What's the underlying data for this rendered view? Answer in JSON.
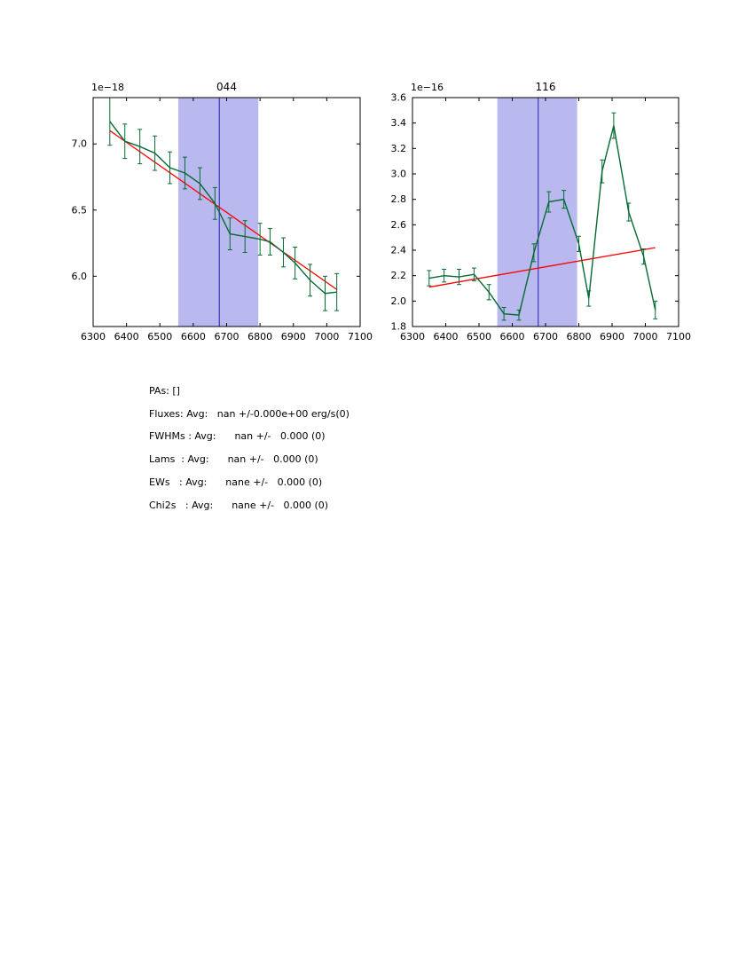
{
  "figure": {
    "background": "#ffffff"
  },
  "stats": {
    "lines": [
      "PAs: []",
      "Fluxes: Avg:   nan +/-0.000e+00 erg/s(0)",
      "FWHMs : Avg:      nan +/-   0.000 (0)",
      "Lams  : Avg:      nan +/-   0.000 (0)",
      "EWs   : Avg:      nane +/-   0.000 (0)",
      "Chi2s   : Avg:      nane +/-   0.000 (0)"
    ]
  },
  "chart_data": [
    {
      "type": "line",
      "title": "044",
      "offset_label": "1e−18",
      "xlabel": "",
      "ylabel": "",
      "legend": "none",
      "grid": false,
      "xlim": [
        6300,
        7100
      ],
      "ylim": [
        5.62,
        7.35
      ],
      "xticks": [
        6300,
        6400,
        6500,
        6600,
        6700,
        6800,
        6900,
        7000,
        7100
      ],
      "yticks": [
        6.0,
        6.5,
        7.0
      ],
      "span": [
        6555,
        6795
      ],
      "vline": 6678,
      "x": [
        6350,
        6395,
        6440,
        6485,
        6530,
        6575,
        6620,
        6665,
        6710,
        6755,
        6800,
        6830,
        6870,
        6905,
        6950,
        6995,
        7030
      ],
      "series": [
        {
          "name": "spectrum",
          "color": "#046b32",
          "values": [
            7.17,
            7.02,
            6.98,
            6.93,
            6.82,
            6.78,
            6.7,
            6.55,
            6.32,
            6.3,
            6.28,
            6.26,
            6.18,
            6.1,
            5.97,
            5.87,
            5.88
          ],
          "errors": [
            0.18,
            0.13,
            0.13,
            0.13,
            0.12,
            0.12,
            0.12,
            0.12,
            0.12,
            0.12,
            0.12,
            0.1,
            0.11,
            0.12,
            0.12,
            0.13,
            0.14
          ]
        }
      ],
      "fit": {
        "name": "linear-fit",
        "color": "#ff0000",
        "x": [
          6350,
          7030
        ],
        "y": [
          7.1,
          5.9
        ]
      },
      "colors": {
        "span": "#b9b9ef",
        "vline": "#2020b0"
      }
    },
    {
      "type": "line",
      "title": "116",
      "offset_label": "1e−16",
      "xlabel": "",
      "ylabel": "",
      "legend": "none",
      "grid": false,
      "xlim": [
        6300,
        7100
      ],
      "ylim": [
        1.8,
        3.6
      ],
      "xticks": [
        6300,
        6400,
        6500,
        6600,
        6700,
        6800,
        6900,
        7000,
        7100
      ],
      "yticks": [
        1.8,
        2.0,
        2.2,
        2.4,
        2.6,
        2.8,
        3.0,
        3.2,
        3.4,
        3.6
      ],
      "span": [
        6555,
        6795
      ],
      "vline": 6678,
      "x": [
        6350,
        6395,
        6440,
        6485,
        6530,
        6575,
        6620,
        6665,
        6710,
        6755,
        6800,
        6830,
        6870,
        6905,
        6950,
        6995,
        7030
      ],
      "series": [
        {
          "name": "spectrum",
          "color": "#046b32",
          "values": [
            2.18,
            2.2,
            2.19,
            2.21,
            2.07,
            1.9,
            1.89,
            2.38,
            2.78,
            2.8,
            2.45,
            2.02,
            3.02,
            3.38,
            2.7,
            2.35,
            1.93
          ],
          "errors": [
            0.06,
            0.05,
            0.06,
            0.05,
            0.06,
            0.05,
            0.04,
            0.07,
            0.08,
            0.07,
            0.06,
            0.06,
            0.09,
            0.1,
            0.07,
            0.06,
            0.07
          ]
        }
      ],
      "fit": {
        "name": "linear-fit",
        "color": "#ff0000",
        "x": [
          6350,
          7030
        ],
        "y": [
          2.11,
          2.42
        ]
      },
      "colors": {
        "span": "#b9b9ef",
        "vline": "#2020b0"
      }
    }
  ]
}
